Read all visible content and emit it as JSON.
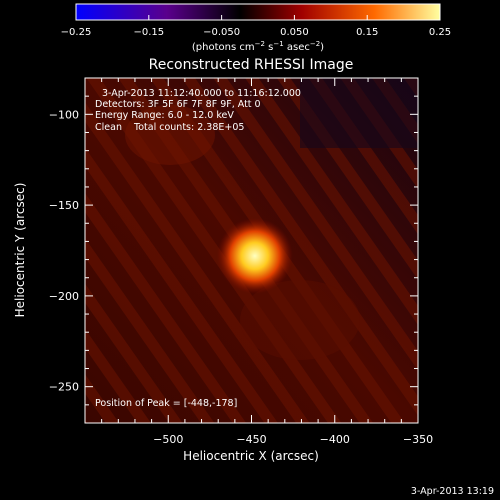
{
  "chart_data": {
    "type": "heatmap",
    "title": "Reconstructed RHESSI Image",
    "xlabel": "Heliocentric X (arcsec)",
    "ylabel": "Heliocentric Y (arcsec)",
    "xlim": [
      -550,
      -350
    ],
    "ylim": [
      -270,
      -80
    ],
    "x_ticks": [
      -500,
      -450,
      -400,
      -350
    ],
    "y_ticks": [
      -100,
      -150,
      -200,
      -250
    ],
    "x_tick_labels": [
      "−500",
      "−450",
      "−400",
      "−350"
    ],
    "y_tick_labels": [
      "−100",
      "−150",
      "−200",
      "−250"
    ],
    "peak": [
      -448,
      -178
    ],
    "colorbar": {
      "range": [
        -0.25,
        0.25
      ],
      "ticks": [
        -0.25,
        -0.15,
        -0.05,
        0.05,
        0.15,
        0.25
      ],
      "tick_labels": [
        "−0.25",
        "−0.15",
        "−0.050",
        "0.050",
        "0.15",
        "0.25"
      ],
      "colors": [
        "#0000ff",
        "#5a008c",
        "#000000",
        "#a00000",
        "#ff6a00",
        "#ffff9a"
      ]
    },
    "annotations": {
      "line1": "3-Apr-2013 11:12:40.000 to 11:16:12.000",
      "line2": "Detectors: 3F 5F 6F 7F 8F 9F, Att 0",
      "line3": "Energy Range: 6.0 - 12.0 keV",
      "line4": "Clean    Total counts: 2.38E+05",
      "peak_label": "Position of Peak = [-448,-178]"
    }
  },
  "colorbar_units": "(photons cm",
  "colorbar_units_exp1": "−2",
  "colorbar_units_mid": " s",
  "colorbar_units_exp2": "−1",
  "colorbar_units_mid2": " asec",
  "colorbar_units_exp3": "−2",
  "colorbar_units_end": ")",
  "footer_timestamp": "3-Apr-2013 13:19"
}
